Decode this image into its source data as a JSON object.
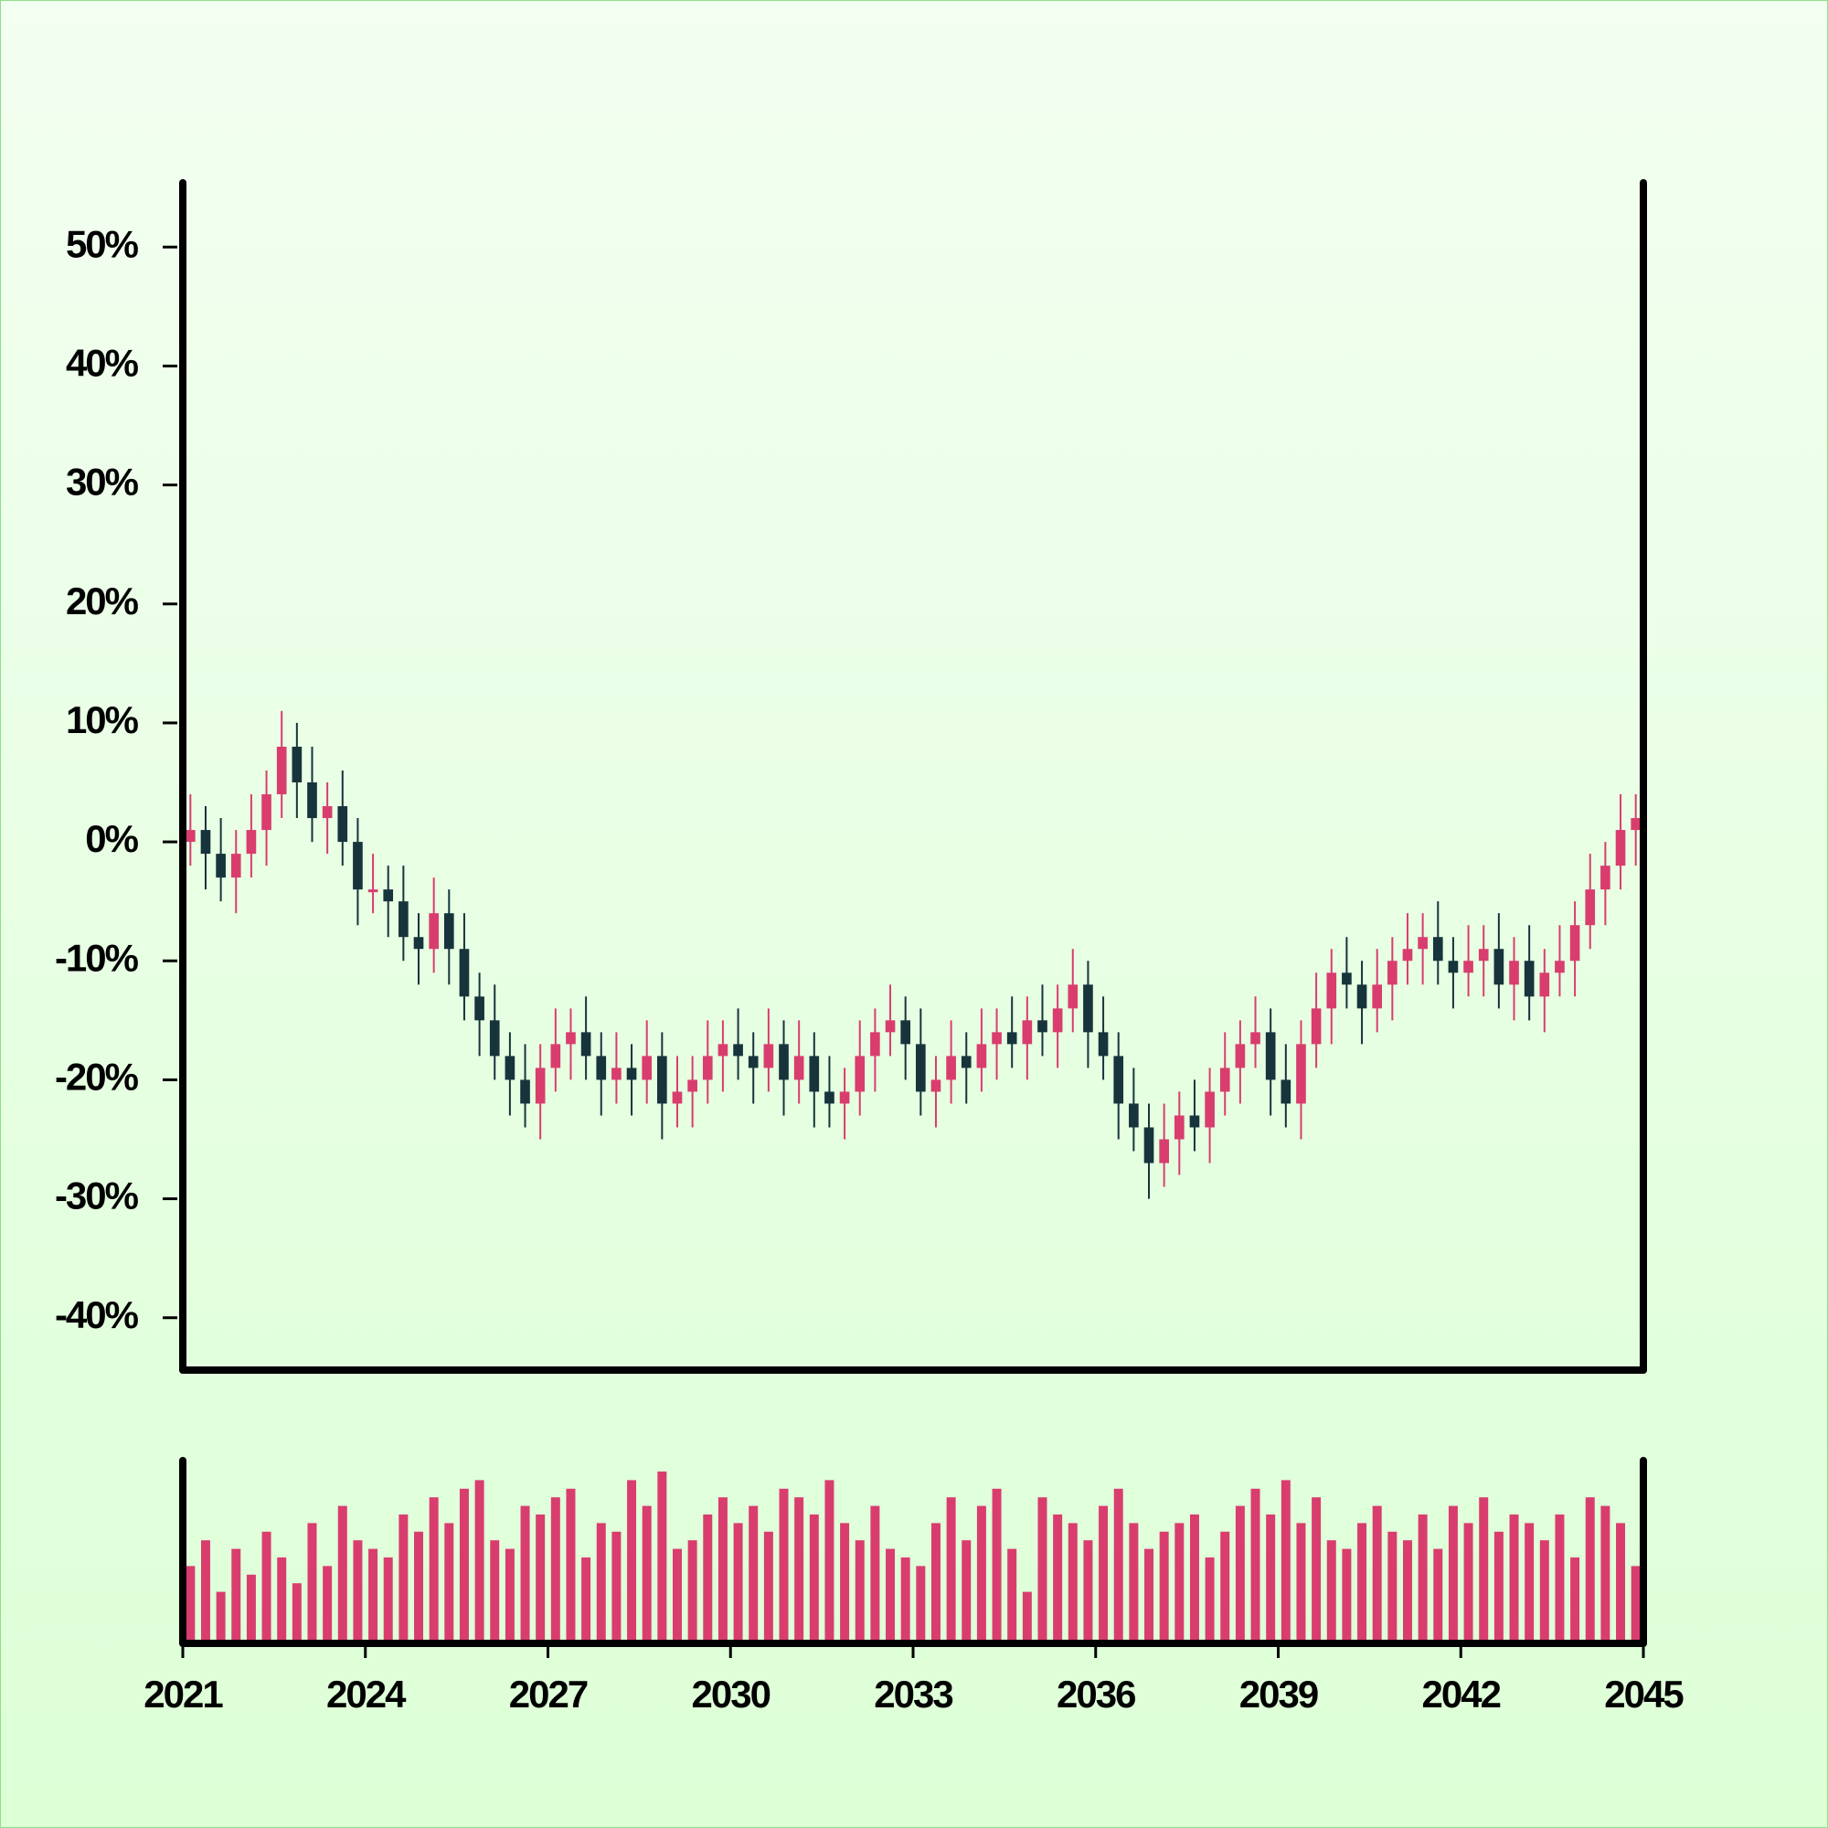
{
  "chart_data": {
    "type": "candlestick",
    "x": [
      2021.125,
      2021.375,
      2021.625,
      2021.875,
      2022.125,
      2022.375,
      2022.625,
      2022.875,
      2023.125,
      2023.375,
      2023.625,
      2023.875,
      2024.125,
      2024.375,
      2024.625,
      2024.875,
      2025.125,
      2025.375,
      2025.625,
      2025.875,
      2026.125,
      2026.375,
      2026.625,
      2026.875,
      2027.125,
      2027.375,
      2027.625,
      2027.875,
      2028.125,
      2028.375,
      2028.625,
      2028.875,
      2029.125,
      2029.375,
      2029.625,
      2029.875,
      2030.125,
      2030.375,
      2030.625,
      2030.875,
      2031.125,
      2031.375,
      2031.625,
      2031.875,
      2032.125,
      2032.375,
      2032.625,
      2032.875,
      2033.125,
      2033.375,
      2033.625,
      2033.875,
      2034.125,
      2034.375,
      2034.625,
      2034.875,
      2035.125,
      2035.375,
      2035.625,
      2035.875,
      2036.125,
      2036.375,
      2036.625,
      2036.875,
      2037.125,
      2037.375,
      2037.625,
      2037.875,
      2038.125,
      2038.375,
      2038.625,
      2038.875,
      2039.125,
      2039.375,
      2039.625,
      2039.875,
      2040.125,
      2040.375,
      2040.625,
      2040.875,
      2041.125,
      2041.375,
      2041.625,
      2041.875,
      2042.125,
      2042.375,
      2042.625,
      2042.875,
      2043.125,
      2043.375,
      2043.625,
      2043.875,
      2044.125,
      2044.375,
      2044.625,
      2044.875
    ],
    "open": [
      0,
      1,
      -1,
      -3,
      -1,
      1,
      4,
      8,
      5,
      2,
      3,
      0,
      -4,
      -4,
      -5,
      -8,
      -9,
      -6,
      -9,
      -13,
      -15,
      -18,
      -20,
      -22,
      -19,
      -17,
      -16,
      -18,
      -20,
      -19,
      -20,
      -18,
      -22,
      -21,
      -20,
      -18,
      -17,
      -18,
      -19,
      -17,
      -20,
      -18,
      -21,
      -22,
      -21,
      -18,
      -16,
      -15,
      -17,
      -21,
      -20,
      -18,
      -19,
      -17,
      -16,
      -17,
      -15,
      -16,
      -14,
      -12,
      -16,
      -18,
      -22,
      -24,
      -27,
      -25,
      -23,
      -24,
      -21,
      -19,
      -17,
      -16,
      -20,
      -22,
      -17,
      -14,
      -11,
      -12,
      -14,
      -12,
      -10,
      -9,
      -8,
      -10,
      -11,
      -10,
      -9,
      -12,
      -10,
      -13,
      -11,
      -10,
      -7,
      -4,
      -2,
      1
    ],
    "high": [
      4,
      3,
      2,
      1,
      4,
      6,
      11,
      10,
      8,
      5,
      6,
      2,
      -1,
      -2,
      -2,
      -6,
      -3,
      -4,
      -6,
      -11,
      -12,
      -16,
      -17,
      -17,
      -14,
      -14,
      -13,
      -16,
      -16,
      -17,
      -15,
      -16,
      -18,
      -18,
      -15,
      -15,
      -14,
      -16,
      -14,
      -15,
      -15,
      -16,
      -18,
      -19,
      -15,
      -14,
      -12,
      -13,
      -14,
      -18,
      -15,
      -16,
      -14,
      -14,
      -13,
      -13,
      -12,
      -12,
      -9,
      -10,
      -13,
      -16,
      -19,
      -22,
      -22,
      -21,
      -20,
      -19,
      -16,
      -15,
      -13,
      -14,
      -17,
      -15,
      -11,
      -9,
      -8,
      -10,
      -9,
      -8,
      -6,
      -6,
      -5,
      -8,
      -7,
      -7,
      -6,
      -8,
      -7,
      -9,
      -7,
      -5,
      -1,
      0,
      4,
      4
    ],
    "low": [
      -2,
      -4,
      -5,
      -6,
      -3,
      -2,
      2,
      2,
      0,
      -1,
      -2,
      -7,
      -6,
      -8,
      -10,
      -12,
      -11,
      -12,
      -15,
      -18,
      -20,
      -23,
      -24,
      -25,
      -21,
      -20,
      -20,
      -23,
      -22,
      -23,
      -22,
      -25,
      -24,
      -24,
      -22,
      -21,
      -20,
      -22,
      -21,
      -23,
      -22,
      -24,
      -24,
      -25,
      -23,
      -21,
      -18,
      -20,
      -23,
      -24,
      -22,
      -22,
      -21,
      -20,
      -19,
      -20,
      -18,
      -19,
      -16,
      -19,
      -20,
      -25,
      -26,
      -30,
      -29,
      -28,
      -26,
      -27,
      -23,
      -22,
      -19,
      -23,
      -24,
      -25,
      -19,
      -17,
      -14,
      -17,
      -16,
      -15,
      -12,
      -12,
      -12,
      -14,
      -13,
      -13,
      -14,
      -15,
      -15,
      -16,
      -13,
      -13,
      -9,
      -7,
      -4,
      -2
    ],
    "close": [
      1,
      -1,
      -3,
      -1,
      1,
      4,
      8,
      5,
      2,
      3,
      0,
      -4,
      -4,
      -5,
      -8,
      -9,
      -6,
      -9,
      -13,
      -15,
      -18,
      -20,
      -22,
      -19,
      -17,
      -16,
      -18,
      -20,
      -19,
      -20,
      -18,
      -22,
      -21,
      -20,
      -18,
      -17,
      -18,
      -19,
      -17,
      -20,
      -18,
      -21,
      -22,
      -21,
      -18,
      -16,
      -15,
      -17,
      -21,
      -20,
      -18,
      -19,
      -17,
      -16,
      -17,
      -15,
      -16,
      -14,
      -12,
      -16,
      -18,
      -22,
      -24,
      -27,
      -25,
      -23,
      -24,
      -21,
      -19,
      -17,
      -16,
      -20,
      -22,
      -17,
      -14,
      -11,
      -12,
      -14,
      -12,
      -10,
      -9,
      -8,
      -10,
      -11,
      -10,
      -9,
      -12,
      -10,
      -13,
      -11,
      -10,
      -7,
      -4,
      -2,
      1,
      2
    ],
    "volume": [
      45,
      60,
      30,
      55,
      40,
      65,
      50,
      35,
      70,
      45,
      80,
      60,
      55,
      50,
      75,
      65,
      85,
      70,
      90,
      95,
      60,
      55,
      80,
      75,
      85,
      90,
      50,
      70,
      65,
      95,
      80,
      100,
      55,
      60,
      75,
      85,
      70,
      80,
      65,
      90,
      85,
      75,
      95,
      70,
      60,
      80,
      55,
      50,
      45,
      70,
      85,
      60,
      80,
      90,
      55,
      30,
      85,
      75,
      70,
      60,
      80,
      90,
      70,
      55,
      65,
      70,
      75,
      50,
      65,
      80,
      90,
      75,
      95,
      70,
      85,
      60,
      55,
      70,
      80,
      65,
      60,
      75,
      55,
      80,
      70,
      85,
      65,
      75,
      70,
      60,
      75,
      50,
      85,
      80,
      70,
      45
    ],
    "up_color": "#d93d6e",
    "down_color": "#17343c",
    "volume_color": "#d93d6e",
    "xlim": [
      2021,
      2045
    ],
    "xticks": [
      2021,
      2024,
      2027,
      2030,
      2033,
      2036,
      2039,
      2042,
      2045
    ],
    "ylim": [
      -44.4,
      55.4
    ],
    "yticks": [
      {
        "value": -40,
        "label": "-40%"
      },
      {
        "value": -30,
        "label": "-30%"
      },
      {
        "value": -20,
        "label": "-20%"
      },
      {
        "value": -10,
        "label": "-10%"
      },
      {
        "value": 0,
        "label": "0%"
      },
      {
        "value": 10,
        "label": "10%"
      },
      {
        "value": 20,
        "label": "20%"
      },
      {
        "value": 30,
        "label": "30%"
      },
      {
        "value": 40,
        "label": "40%"
      },
      {
        "value": 50,
        "label": "50%"
      }
    ]
  }
}
